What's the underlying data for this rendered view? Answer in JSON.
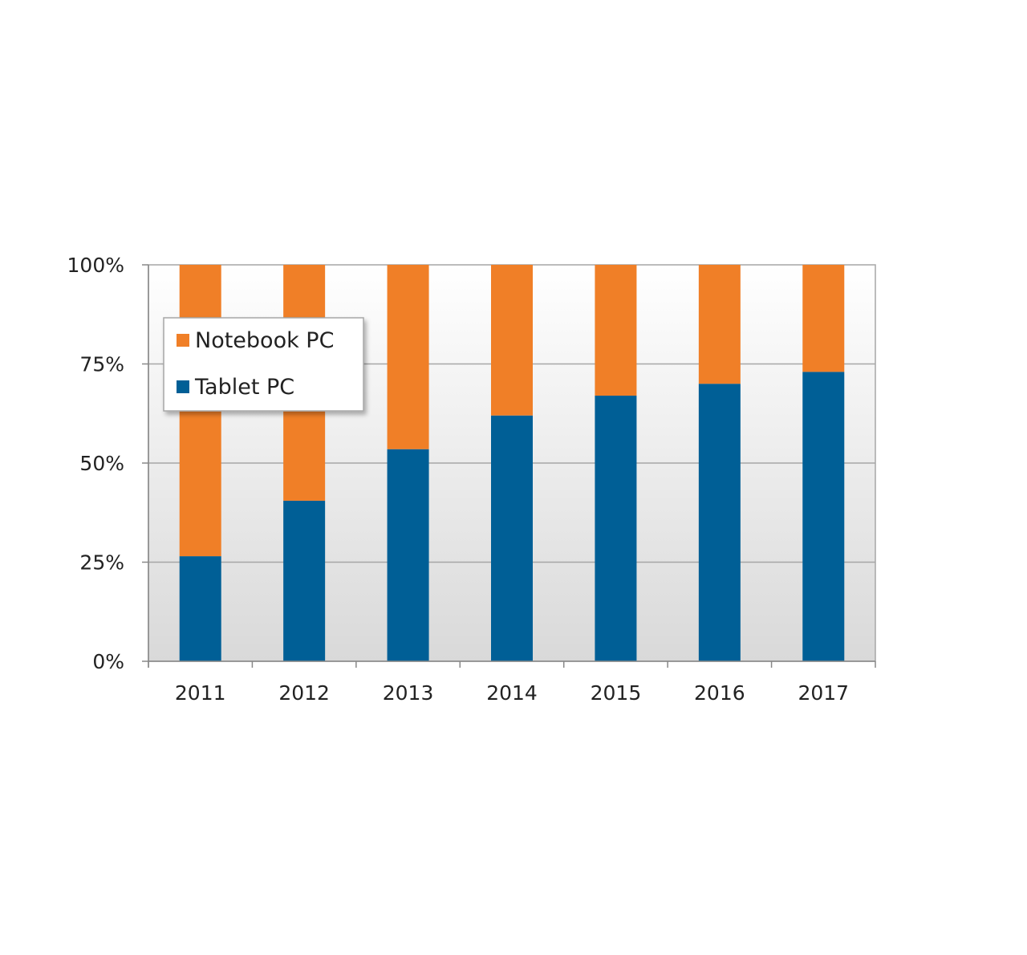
{
  "chart_data": {
    "type": "bar",
    "stacked": true,
    "normalized": true,
    "categories": [
      "2011",
      "2012",
      "2013",
      "2014",
      "2015",
      "2016",
      "2017"
    ],
    "series": [
      {
        "name": "Tablet PC",
        "color": "#005f96",
        "values": [
          26.5,
          40.5,
          53.5,
          62,
          67,
          70,
          73
        ]
      },
      {
        "name": "Notebook PC",
        "color": "#f07f27",
        "values": [
          73.5,
          59.5,
          46.5,
          38,
          33,
          30,
          27
        ]
      }
    ],
    "ylim": [
      0,
      100
    ],
    "y_ticks": [
      0,
      25,
      50,
      75,
      100
    ],
    "y_tick_labels": [
      "0%",
      "25%",
      "50%",
      "75%",
      "100%"
    ],
    "grid": true,
    "legend_placement": "top-left",
    "legend_entries": [
      "Notebook PC",
      "Tablet PC"
    ],
    "plot_background": "gradient white to light gray",
    "title": "",
    "xlabel": "",
    "ylabel": ""
  }
}
